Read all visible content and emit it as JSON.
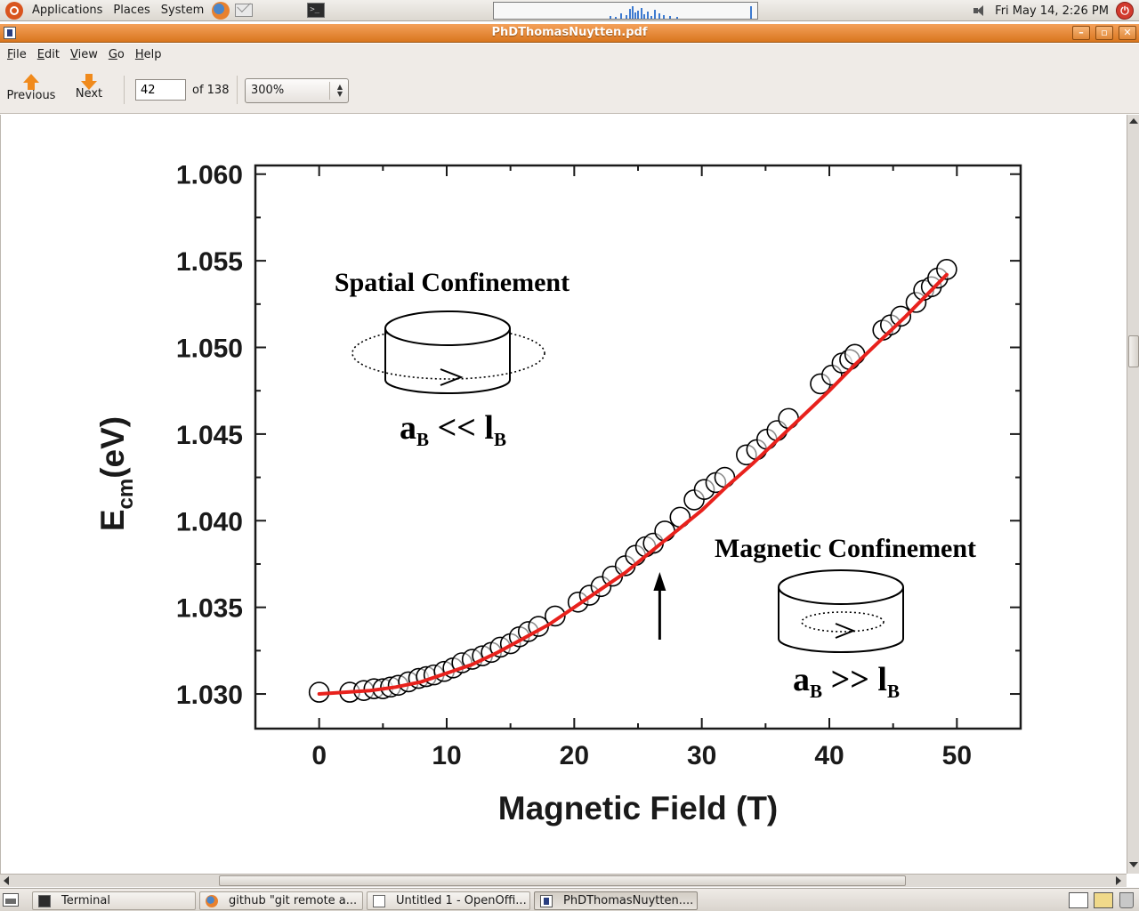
{
  "top_panel": {
    "menus": [
      "Applications",
      "Places",
      "System"
    ],
    "clock": "Fri May 14,  2:26 PM"
  },
  "window": {
    "title": "PhDThomasNuytten.pdf"
  },
  "menubar": {
    "items": [
      {
        "key": "F",
        "rest": "ile"
      },
      {
        "key": "E",
        "rest": "dit"
      },
      {
        "key": "V",
        "rest": "iew"
      },
      {
        "key": "G",
        "rest": "o"
      },
      {
        "key": "H",
        "rest": "elp"
      }
    ]
  },
  "toolbar": {
    "previous_label": "Previous",
    "next_label": "Next",
    "page_value": "42",
    "page_of": "of 138",
    "zoom_value": "300%"
  },
  "taskbar": {
    "tasks": [
      {
        "label": "Terminal",
        "icon": "terminal-icon"
      },
      {
        "label": "github \"git remote a...",
        "icon": "firefox-icon"
      },
      {
        "label": "Untitled 1 - OpenOffi...",
        "icon": "openoffice-icon"
      },
      {
        "label": "PhDThomasNuytten....",
        "icon": "pdf-icon"
      }
    ]
  },
  "chart_data": {
    "type": "scatter",
    "xlabel": "Magnetic Field (T)",
    "ylabel_main": "E",
    "ylabel_sub": "cm",
    "ylabel_unit": "(eV)",
    "xlim": [
      -5,
      55
    ],
    "ylim": [
      1.028,
      1.0605
    ],
    "xticks": [
      0,
      10,
      20,
      30,
      40,
      50
    ],
    "yticks": [
      1.03,
      1.035,
      1.04,
      1.045,
      1.05,
      1.055,
      1.06
    ],
    "ytick_labels": [
      "1.030",
      "1.035",
      "1.040",
      "1.045",
      "1.050",
      "1.055",
      "1.060"
    ],
    "series": [
      {
        "kind": "points",
        "marker": "open-circle",
        "color": "#000000",
        "x": [
          0,
          2.4,
          3.5,
          4.3,
          5.0,
          5.6,
          6.2,
          7.0,
          7.8,
          8.4,
          9.0,
          9.8,
          10.5,
          11.2,
          12.0,
          12.8,
          13.5,
          14.2,
          15.0,
          15.7,
          16.4,
          17.2,
          18.5,
          20.3,
          21.2,
          22.1,
          23.0,
          24.0,
          24.8,
          25.6,
          26.2,
          27.1,
          28.3,
          29.4,
          30.2,
          31.1,
          31.8,
          33.5,
          34.3,
          35.1,
          35.9,
          36.8,
          39.3,
          40.2,
          41.0,
          41.6,
          42.0,
          44.2,
          44.8,
          45.6,
          46.8,
          47.4,
          48.0,
          48.5,
          49.2
        ],
        "y": [
          1.0301,
          1.0301,
          1.0302,
          1.0303,
          1.0303,
          1.0304,
          1.0305,
          1.0307,
          1.0309,
          1.031,
          1.0311,
          1.0313,
          1.0315,
          1.0318,
          1.032,
          1.0322,
          1.0324,
          1.0327,
          1.0329,
          1.0333,
          1.0336,
          1.0339,
          1.0345,
          1.0353,
          1.0357,
          1.0362,
          1.0368,
          1.0374,
          1.038,
          1.0385,
          1.0387,
          1.0394,
          1.0402,
          1.0412,
          1.0418,
          1.0422,
          1.0425,
          1.0438,
          1.0441,
          1.0447,
          1.0452,
          1.0459,
          1.0479,
          1.0484,
          1.0491,
          1.0493,
          1.0496,
          1.051,
          1.0513,
          1.0518,
          1.0526,
          1.0533,
          1.0535,
          1.054,
          1.0545
        ]
      },
      {
        "kind": "fit-line",
        "color": "#e8211c",
        "x": [
          0,
          2,
          4,
          6,
          8,
          10,
          12,
          14,
          16,
          18,
          20,
          22,
          24,
          26,
          28,
          30,
          32,
          34,
          36,
          38,
          40,
          42,
          44,
          46,
          48,
          49.2
        ],
        "y": [
          1.03,
          1.0301,
          1.0302,
          1.0304,
          1.0307,
          1.0312,
          1.0317,
          1.0324,
          1.0332,
          1.034,
          1.035,
          1.036,
          1.037,
          1.0382,
          1.0394,
          1.0406,
          1.042,
          1.0433,
          1.0447,
          1.0461,
          1.0475,
          1.049,
          1.0504,
          1.0518,
          1.0533,
          1.0542
        ]
      }
    ],
    "annotations": {
      "spatial_title": "Spatial Confinement",
      "spatial_a": "a",
      "spatial_a_sub": "B",
      "spatial_rel": " << l",
      "spatial_l_sub": "B",
      "magnetic_title": "Magnetic Confinement",
      "magnetic_a": "a",
      "magnetic_a_sub": "B",
      "magnetic_rel": " >> l",
      "magnetic_l_sub": "B"
    },
    "arrow_at_x": 26.7,
    "grid": false,
    "legend": "none"
  }
}
